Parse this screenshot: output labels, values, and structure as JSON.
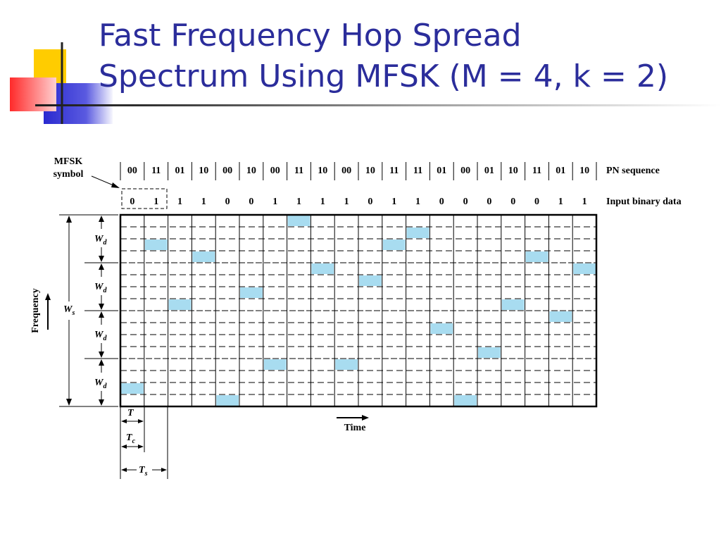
{
  "slide": {
    "title_line1": "Fast Frequency Hop Spread",
    "title_line2": "Spectrum Using MFSK (M = 4, k = 2)"
  },
  "figure": {
    "mfsk_label_1": "MFSK",
    "mfsk_label_2": "symbol",
    "pn_label": "PN sequence",
    "input_label": "Input binary data",
    "frequency_label": "Frequency",
    "time_label": "Time",
    "wd_label": "W",
    "wd_sub": "d",
    "ws_label": "W",
    "ws_sub": "s",
    "t_label": "T",
    "tc_label": "T",
    "tc_sub": "c",
    "ts_label": "T",
    "ts_sub": "s",
    "pn_sequence": [
      "00",
      "11",
      "01",
      "10",
      "00",
      "10",
      "00",
      "11",
      "10",
      "00",
      "10",
      "11",
      "11",
      "01",
      "00",
      "01",
      "10",
      "11",
      "01",
      "10"
    ],
    "input_bits": [
      "0",
      "1",
      "1",
      "1",
      "0",
      "0",
      "1",
      "1",
      "1",
      "1",
      "0",
      "1",
      "1",
      "0",
      "0",
      "0",
      "0",
      "0",
      "1",
      "1"
    ],
    "frequency_slots": 16,
    "occupied_slot_per_chip": [
      1,
      13,
      8,
      12,
      0,
      9,
      3,
      15,
      11,
      3,
      10,
      13,
      14,
      6,
      0,
      4,
      8,
      12,
      7,
      11
    ],
    "cell_color": "#a8dcf0"
  }
}
